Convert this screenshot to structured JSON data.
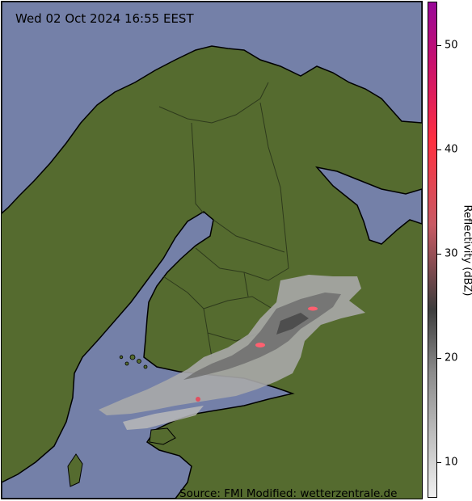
{
  "map": {
    "timestamp": "Wed 02 Oct 2024 16:55 EEST",
    "source": "Source: FMI Modified: wetterzentrale.de",
    "colors": {
      "land": "#556b2f",
      "water": "#7480a8",
      "borders": "#2e3a1c"
    }
  },
  "colorbar": {
    "label": "Reflectivity (dBZ)",
    "ticks": [
      "10",
      "20",
      "30",
      "40",
      "50"
    ],
    "gradient": [
      "#f0f0f0",
      "#8c8c8c",
      "#3d3d3d",
      "#c85a64",
      "#ff3040",
      "#c8106e",
      "#980898"
    ]
  }
}
